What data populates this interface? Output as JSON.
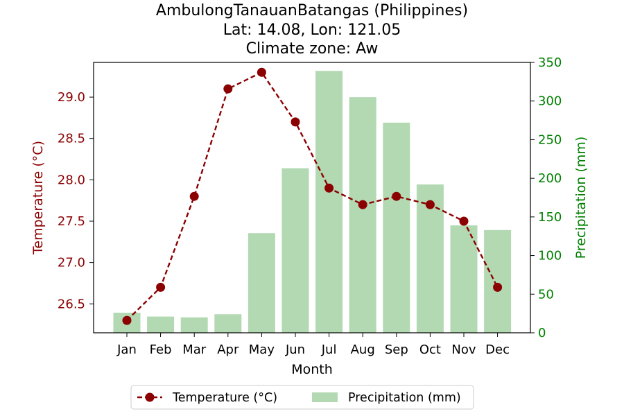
{
  "chart_data": {
    "type": "bar+line",
    "title_lines": [
      "AmbulongTanauanBatangas (Philippines)",
      "Lat: 14.08, Lon: 121.05",
      "Climate zone: Aw"
    ],
    "xlabel": "Month",
    "categories": [
      "Jan",
      "Feb",
      "Mar",
      "Apr",
      "May",
      "Jun",
      "Jul",
      "Aug",
      "Sep",
      "Oct",
      "Nov",
      "Dec"
    ],
    "temperature": {
      "name": "Temperature (°C)",
      "axis_label": "Temperature (°C)",
      "color": "#8b0000",
      "values": [
        26.3,
        26.7,
        27.8,
        29.1,
        29.3,
        28.7,
        27.9,
        27.7,
        27.8,
        27.7,
        27.5,
        26.7
      ],
      "ylim": [
        26.15,
        29.42
      ],
      "ticks": [
        "26.5",
        "27.0",
        "27.5",
        "28.0",
        "28.5",
        "29.0"
      ]
    },
    "precipitation": {
      "name": "Precipitation (mm)",
      "axis_label": "Precipitation (mm)",
      "color": "#008000",
      "bar_color": "#b2d9b2",
      "values": [
        26,
        21,
        20,
        24,
        129,
        213,
        339,
        305,
        272,
        192,
        139,
        133
      ],
      "ylim": [
        0,
        350
      ],
      "ticks": [
        "0",
        "50",
        "100",
        "150",
        "200",
        "250",
        "300",
        "350"
      ]
    },
    "legend_position": "bottom-center",
    "grid": false
  }
}
